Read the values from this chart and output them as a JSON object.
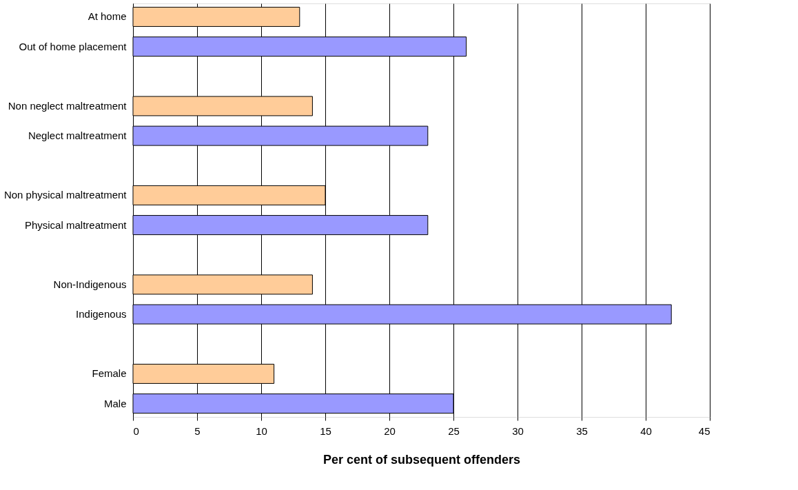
{
  "chart_data": {
    "type": "bar",
    "orientation": "horizontal",
    "xlabel": "Per cent of subsequent offenders",
    "categories": [
      "At home",
      "Out of home placement",
      null,
      "Non neglect maltreatment",
      "Neglect maltreatment",
      null,
      "Non physical maltreatment",
      "Physical maltreatment",
      null,
      "Non-Indigenous",
      "Indigenous",
      null,
      "Female",
      "Male"
    ],
    "values": [
      13,
      26,
      null,
      14,
      23,
      null,
      15,
      23,
      null,
      14,
      42,
      null,
      11,
      25
    ],
    "colors": [
      "#ffcc99",
      "#9999ff",
      null,
      "#ffcc99",
      "#9999ff",
      null,
      "#ffcc99",
      "#9999ff",
      null,
      "#ffcc99",
      "#9999ff",
      null,
      "#ffcc99",
      "#9999ff"
    ],
    "xlim": [
      0,
      45
    ],
    "xticks": [
      0,
      5,
      10,
      15,
      20,
      25,
      30,
      35,
      40,
      45
    ],
    "grid": "x"
  }
}
